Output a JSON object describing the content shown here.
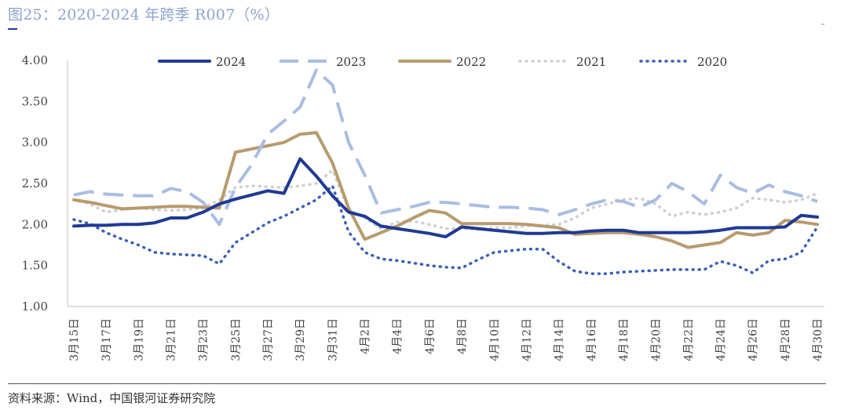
{
  "header": {
    "title": "图25：2020-2024 年跨季 R007（%）"
  },
  "footer": {
    "source": "资料来源：Wind，中国银河证券研究院"
  },
  "colors": {
    "s2024": "#1f3a93",
    "s2023": "#a9bde3",
    "s2022": "#b89a6e",
    "s2021": "#cfcfcf",
    "s2020": "#3a5fb5"
  },
  "chart_data": {
    "type": "line",
    "title": "",
    "xlabel": "",
    "ylabel": "",
    "ylim": [
      1.0,
      4.0
    ],
    "yticks": [
      "1.00",
      "1.50",
      "2.00",
      "2.50",
      "3.00",
      "3.50",
      "4.00"
    ],
    "grid": false,
    "legend_position": "top",
    "x": [
      "3月15日",
      "3月16日",
      "3月17日",
      "3月18日",
      "3月19日",
      "3月20日",
      "3月21日",
      "3月22日",
      "3月23日",
      "3月24日",
      "3月25日",
      "3月26日",
      "3月27日",
      "3月28日",
      "3月29日",
      "3月30日",
      "3月31日",
      "4月1日",
      "4月2日",
      "4月3日",
      "4月4日",
      "4月5日",
      "4月6日",
      "4月7日",
      "4月8日",
      "4月9日",
      "4月10日",
      "4月11日",
      "4月12日",
      "4月13日",
      "4月14日",
      "4月15日",
      "4月16日",
      "4月17日",
      "4月18日",
      "4月19日",
      "4月20日",
      "4月21日",
      "4月22日",
      "4月23日",
      "4月24日",
      "4月25日",
      "4月26日",
      "4月27日",
      "4月28日",
      "4月29日",
      "4月30日"
    ],
    "xticks": [
      "3月15日",
      "3月17日",
      "3月19日",
      "3月21日",
      "3月23日",
      "3月25日",
      "3月27日",
      "3月29日",
      "3月31日",
      "4月2日",
      "4月4日",
      "4月6日",
      "4月8日",
      "4月10日",
      "4月12日",
      "4月14日",
      "4月16日",
      "4月18日",
      "4月20日",
      "4月22日",
      "4月24日",
      "4月26日",
      "4月28日",
      "4月30日"
    ],
    "series": [
      {
        "name": "2024",
        "style": "solid",
        "color": "#1f3a93",
        "values": [
          1.98,
          1.99,
          1.99,
          2.0,
          2.0,
          2.02,
          2.08,
          2.08,
          2.15,
          2.25,
          2.31,
          2.36,
          2.41,
          2.38,
          2.8,
          2.59,
          2.35,
          2.15,
          2.1,
          1.98,
          1.95,
          1.92,
          1.89,
          1.85,
          1.97,
          1.95,
          1.93,
          1.91,
          1.89,
          1.89,
          1.9,
          1.9,
          1.92,
          1.93,
          1.93,
          1.9,
          1.9,
          1.9,
          1.9,
          1.91,
          1.93,
          1.96,
          1.96,
          1.96,
          1.97,
          2.11,
          2.09
        ]
      },
      {
        "name": "2023",
        "style": "dashed",
        "color": "#a9bde3",
        "values": [
          2.36,
          2.4,
          2.37,
          2.36,
          2.35,
          2.35,
          2.44,
          2.4,
          2.27,
          2.0,
          2.45,
          2.73,
          3.1,
          3.26,
          3.43,
          3.88,
          3.7,
          3.0,
          2.6,
          2.14,
          2.18,
          2.22,
          2.27,
          2.27,
          2.25,
          2.23,
          2.21,
          2.21,
          2.2,
          2.18,
          2.12,
          2.18,
          2.25,
          2.3,
          2.28,
          2.21,
          2.3,
          2.5,
          2.4,
          2.25,
          2.6,
          2.45,
          2.38,
          2.48,
          2.4,
          2.35,
          2.28
        ]
      },
      {
        "name": "2022",
        "style": "solid",
        "color": "#b89a6e",
        "values": [
          2.3,
          2.27,
          2.23,
          2.19,
          2.2,
          2.21,
          2.22,
          2.22,
          2.21,
          2.2,
          2.88,
          2.92,
          2.96,
          3.0,
          3.1,
          3.12,
          2.75,
          2.2,
          1.82,
          1.9,
          1.98,
          2.08,
          2.17,
          2.14,
          2.01,
          2.01,
          2.01,
          2.01,
          2.0,
          1.98,
          1.96,
          1.88,
          1.89,
          1.9,
          1.9,
          1.88,
          1.85,
          1.8,
          1.72,
          1.75,
          1.78,
          1.9,
          1.87,
          1.9,
          2.05,
          2.03,
          2.0
        ]
      },
      {
        "name": "2021",
        "style": "dotted-light",
        "color": "#cfcfcf",
        "values": [
          2.3,
          2.25,
          2.15,
          2.18,
          2.2,
          2.18,
          2.17,
          2.18,
          2.2,
          2.3,
          2.45,
          2.47,
          2.46,
          2.45,
          2.47,
          2.5,
          2.66,
          2.18,
          2.08,
          1.95,
          2.03,
          2.04,
          2.0,
          1.95,
          1.95,
          1.94,
          1.96,
          1.96,
          1.98,
          1.99,
          2.0,
          2.08,
          2.2,
          2.25,
          2.3,
          2.32,
          2.25,
          2.1,
          2.15,
          2.12,
          2.15,
          2.2,
          2.32,
          2.3,
          2.27,
          2.3,
          2.38
        ]
      },
      {
        "name": "2020",
        "style": "dotted",
        "color": "#3a5fb5",
        "values": [
          2.06,
          2.01,
          1.9,
          1.82,
          1.75,
          1.66,
          1.64,
          1.63,
          1.62,
          1.52,
          1.78,
          1.9,
          2.02,
          2.1,
          2.2,
          2.3,
          2.47,
          1.91,
          1.66,
          1.58,
          1.56,
          1.53,
          1.5,
          1.48,
          1.47,
          1.57,
          1.66,
          1.68,
          1.7,
          1.7,
          1.55,
          1.43,
          1.4,
          1.4,
          1.42,
          1.43,
          1.44,
          1.45,
          1.45,
          1.45,
          1.55,
          1.5,
          1.41,
          1.56,
          1.58,
          1.66,
          1.97
        ]
      }
    ]
  }
}
